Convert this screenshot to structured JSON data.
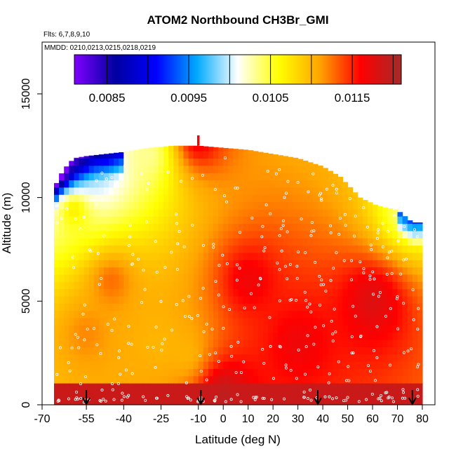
{
  "chart_data": {
    "type": "heatmap",
    "title": "ATOM2 Northbound CH3Br_GMI",
    "notes": {
      "flights": "Flts: 6,7,8,9,10",
      "dates": "MMDD: 0210,0213,0215,0218,0219"
    },
    "xlabel": "Latitude (deg N)",
    "ylabel": "Altitude (m)",
    "xlim": [
      -70,
      85
    ],
    "ylim": [
      0,
      17500
    ],
    "x_ticks": [
      -70,
      -55,
      -40,
      -25,
      -10,
      0,
      10,
      20,
      30,
      40,
      50,
      60,
      70,
      80
    ],
    "x_tick_labels": [
      "-70",
      "-55",
      "-40",
      "-25",
      "-10",
      "0",
      "10",
      "20",
      "30",
      "40",
      "50",
      "60",
      "70",
      "80"
    ],
    "y_ticks": [
      0,
      5000,
      10000,
      15000
    ],
    "y_tick_labels": [
      "0",
      "5000",
      "10000",
      "15000"
    ],
    "colorbar": {
      "range": [
        0.0081,
        0.0121
      ],
      "tick_values": [
        0.0085,
        0.0095,
        0.0105,
        0.0115
      ],
      "tick_labels": [
        "0.0085",
        "0.0095",
        "0.0105",
        "0.0115"
      ],
      "colors": [
        "#7f00ff",
        "#0000a0",
        "#0000ff",
        "#00aaff",
        "#ffffff",
        "#ffff00",
        "#ffa500",
        "#ff0000",
        "#a52a2a"
      ]
    },
    "profile_top_altitude": [
      {
        "lat": -68,
        "alt": 10400
      },
      {
        "lat": -66,
        "alt": 11000
      },
      {
        "lat": -63,
        "alt": 11500
      },
      {
        "lat": -60,
        "alt": 11900
      },
      {
        "lat": -55,
        "alt": 12000
      },
      {
        "lat": -40,
        "alt": 12200
      },
      {
        "lat": -30,
        "alt": 12400
      },
      {
        "lat": -20,
        "alt": 12500
      },
      {
        "lat": -10,
        "alt": 12500
      },
      {
        "lat": 0,
        "alt": 12400
      },
      {
        "lat": 10,
        "alt": 12300
      },
      {
        "lat": 20,
        "alt": 12100
      },
      {
        "lat": 30,
        "alt": 11900
      },
      {
        "lat": 40,
        "alt": 11500
      },
      {
        "lat": 47,
        "alt": 11000
      },
      {
        "lat": 55,
        "alt": 10000
      },
      {
        "lat": 62,
        "alt": 9600
      },
      {
        "lat": 70,
        "alt": 9400
      },
      {
        "lat": 76,
        "alt": 8800
      },
      {
        "lat": 80,
        "alt": 8800
      }
    ],
    "field_description_points": [
      {
        "lat": -65,
        "alt": 11300,
        "value": 0.0087
      },
      {
        "lat": -60,
        "alt": 11700,
        "value": 0.0094
      },
      {
        "lat": -50,
        "alt": 11500,
        "value": 0.0099
      },
      {
        "lat": -30,
        "alt": 12100,
        "value": 0.0103
      },
      {
        "lat": -10,
        "alt": 12800,
        "value": 0.0117
      },
      {
        "lat": -60,
        "alt": 9500,
        "value": 0.0108
      },
      {
        "lat": -55,
        "alt": 3500,
        "value": 0.0112
      },
      {
        "lat": -45,
        "alt": 6000,
        "value": 0.0113
      },
      {
        "lat": -25,
        "alt": 3000,
        "value": 0.011
      },
      {
        "lat": -15,
        "alt": 2500,
        "value": 0.011
      },
      {
        "lat": 10,
        "alt": 6000,
        "value": 0.0117
      },
      {
        "lat": 30,
        "alt": 3000,
        "value": 0.0117
      },
      {
        "lat": 60,
        "alt": 5000,
        "value": 0.0118
      },
      {
        "lat": 75,
        "alt": 9300,
        "value": 0.0103
      },
      {
        "lat": 0,
        "alt": 500,
        "value": 0.012
      }
    ],
    "profile_markers_lat": [
      -55,
      -9,
      38,
      76
    ],
    "grid": false,
    "legend": "colorbar inside plot, top"
  }
}
